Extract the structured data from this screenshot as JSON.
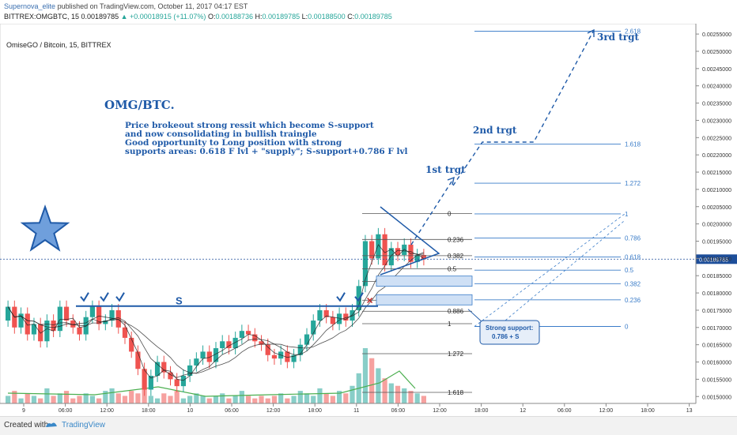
{
  "header": {
    "author": "Supernova_elite",
    "published": "published on TradingView.com, October 11, 2017 04:17 EST",
    "symbol": "BITTREX:OMGBTC, 15",
    "last": "0.00189785",
    "change": "▲ +0.00018915 (+11.07%)",
    "o_label": "O:",
    "o_val": "0.00188736",
    "h_label": "H:",
    "h_val": "0.00189785",
    "l_label": "L:",
    "l_val": "0.00188500",
    "c_label": "C:",
    "c_val": "0.00189785"
  },
  "footer": {
    "created": "Created with",
    "brand": "TradingView"
  },
  "colors": {
    "up": "#26a69a",
    "down": "#ef5350",
    "annotation": "#1f5aa8",
    "fib": "#3a7cc8",
    "price": "#1d4e9a",
    "volume_ma": "#4caf50"
  },
  "chart_data": {
    "type": "candlestick",
    "instrument": "OmiseGO / Bitcoin, 15, BITTREX",
    "ylim": [
      0.00148,
      0.00258
    ],
    "y_ticks": [
      "0.00150000",
      "0.00155000",
      "0.00160000",
      "0.00165000",
      "0.00170000",
      "0.00175000",
      "0.00180000",
      "0.00185000",
      "0.00190000",
      "0.00195000",
      "0.00200000",
      "0.00205000",
      "0.00210000",
      "0.00215000",
      "0.00220000",
      "0.00225000",
      "0.00230000",
      "0.00235000",
      "0.00240000",
      "0.00245000",
      "0.00250000",
      "0.00255000"
    ],
    "x_ticks": [
      "9",
      "06:00",
      "12:00",
      "18:00",
      "10",
      "06:00",
      "12:00",
      "18:00",
      "11",
      "06:00",
      "12:00",
      "18:00",
      "12",
      "06:00",
      "12:00",
      "18:00",
      "13"
    ],
    "current_price": "0.00189785",
    "price_path": [
      [
        0.00172,
        0.00176
      ],
      [
        0.00176,
        0.0017
      ],
      [
        0.0017,
        0.00174
      ],
      [
        0.00174,
        0.00168
      ],
      [
        0.00168,
        0.00171
      ],
      [
        0.00171,
        0.00166
      ],
      [
        0.00166,
        0.00172
      ],
      [
        0.00172,
        0.00169
      ],
      [
        0.00169,
        0.00176
      ],
      [
        0.00176,
        0.00172
      ],
      [
        0.00172,
        0.0017
      ],
      [
        0.0017,
        0.00168
      ],
      [
        0.00168,
        0.00173
      ],
      [
        0.00173,
        0.00176
      ],
      [
        0.00176,
        0.00171
      ],
      [
        0.00171,
        0.00172
      ],
      [
        0.00172,
        0.00175
      ],
      [
        0.00175,
        0.0017
      ],
      [
        0.0017,
        0.00167
      ],
      [
        0.00167,
        0.00163
      ],
      [
        0.00163,
        0.00158
      ],
      [
        0.00158,
        0.00152
      ],
      [
        0.00152,
        0.00156
      ],
      [
        0.00156,
        0.0016
      ],
      [
        0.0016,
        0.00157
      ],
      [
        0.00157,
        0.00155
      ],
      [
        0.00155,
        0.00153
      ],
      [
        0.00153,
        0.00156
      ],
      [
        0.00156,
        0.00159
      ],
      [
        0.00159,
        0.00161
      ],
      [
        0.00161,
        0.00163
      ],
      [
        0.00163,
        0.0016
      ],
      [
        0.0016,
        0.00164
      ],
      [
        0.00164,
        0.00166
      ],
      [
        0.00166,
        0.00164
      ],
      [
        0.00164,
        0.00167
      ],
      [
        0.00167,
        0.00169
      ],
      [
        0.00169,
        0.00168
      ],
      [
        0.00168,
        0.00166
      ],
      [
        0.00166,
        0.00165
      ],
      [
        0.00165,
        0.00162
      ],
      [
        0.00162,
        0.00161
      ],
      [
        0.00161,
        0.00163
      ],
      [
        0.00163,
        0.0016
      ],
      [
        0.0016,
        0.00162
      ],
      [
        0.00162,
        0.00165
      ],
      [
        0.00165,
        0.00168
      ],
      [
        0.00168,
        0.00172
      ],
      [
        0.00172,
        0.00175
      ],
      [
        0.00175,
        0.00173
      ],
      [
        0.00173,
        0.00171
      ],
      [
        0.00171,
        0.00174
      ],
      [
        0.00174,
        0.00172
      ],
      [
        0.00172,
        0.00175
      ],
      [
        0.00175,
        0.00182
      ],
      [
        0.00182,
        0.00195
      ],
      [
        0.00195,
        0.0019
      ],
      [
        0.0019,
        0.00197
      ],
      [
        0.00197,
        0.00188
      ],
      [
        0.00188,
        0.00193
      ],
      [
        0.00193,
        0.00191
      ],
      [
        0.00191,
        0.00194
      ],
      [
        0.00194,
        0.00189
      ],
      [
        0.00189,
        0.00191
      ],
      [
        0.00191,
        0.00189785
      ]
    ],
    "volume_path": [
      3,
      5,
      2,
      4,
      3,
      2,
      6,
      3,
      4,
      5,
      2,
      3,
      4,
      3,
      2,
      5,
      6,
      4,
      3,
      5,
      4,
      6,
      3,
      2,
      4,
      3,
      5,
      2,
      3,
      4,
      3,
      2,
      3,
      4,
      2,
      3,
      5,
      3,
      2,
      3,
      2,
      3,
      4,
      2,
      3,
      5,
      4,
      3,
      6,
      4,
      3,
      5,
      4,
      7,
      12,
      22,
      18,
      14,
      10,
      8,
      7,
      6,
      5,
      4,
      3
    ],
    "fib_left": [
      {
        "label": "0",
        "price": 0.00203
      },
      {
        "label": "0.236",
        "price": 0.001955
      },
      {
        "label": "0.382",
        "price": 0.001908
      },
      {
        "label": "0.5",
        "price": 0.00187
      },
      {
        "label": "0.618",
        "price": 0.001833
      },
      {
        "label": "0.786",
        "price": 0.001779
      },
      {
        "label": "0.886",
        "price": 0.001747
      },
      {
        "label": "1",
        "price": 0.001711
      },
      {
        "label": "1.272",
        "price": 0.001624
      },
      {
        "label": "1.618",
        "price": 0.001512
      }
    ],
    "fib_right": [
      {
        "label": "2.618",
        "price": 0.002558
      },
      {
        "label": "1.618",
        "price": 0.002231
      },
      {
        "label": "1.272",
        "price": 0.002118
      },
      {
        "label": "1",
        "price": 0.002029
      },
      {
        "label": "0.786",
        "price": 0.001959
      },
      {
        "label": "0.618",
        "price": 0.001904
      },
      {
        "label": "0.5",
        "price": 0.001866
      },
      {
        "label": "0.382",
        "price": 0.001827
      },
      {
        "label": "0.236",
        "price": 0.00178
      },
      {
        "label": "0",
        "price": 0.001703
      }
    ],
    "support_price": 0.001762,
    "annotations": {
      "title": "OMG/BTC.",
      "lines": [
        "Price brokeout strong ressit which become S-support",
        "and now consolidating in bullish traingle",
        "Good opportunity to Long position with strong",
        "supports areas: 0.618 F lvl + \"supply\"; S-support+0.786 F lvl"
      ],
      "support_label": "S",
      "target1": "1st trgt",
      "target2": "2nd trgt",
      "target3": "3rd trgt",
      "callout": [
        "Strong support:",
        "0.786 + S"
      ]
    }
  }
}
